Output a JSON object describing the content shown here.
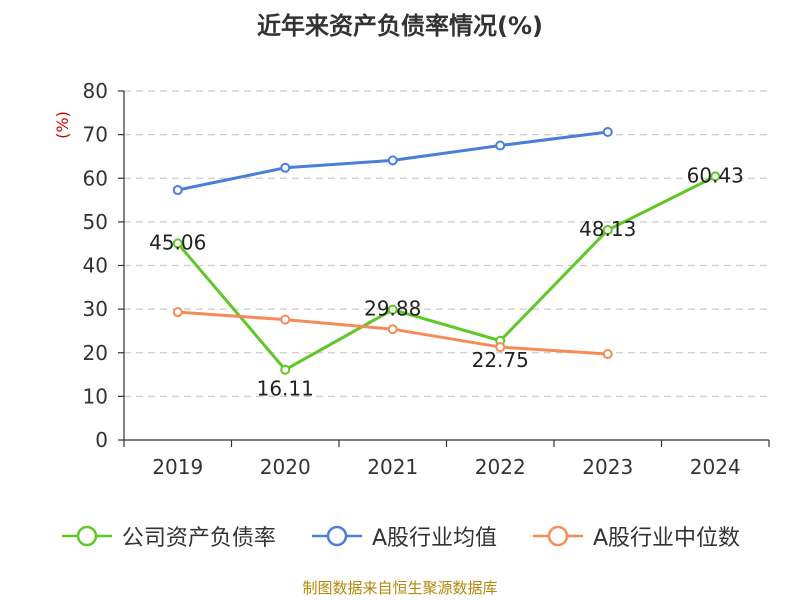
{
  "chart_data": {
    "type": "line",
    "title": "近年来资产负债率情况(%)",
    "ylabel": "(%)",
    "xlabel": "",
    "categories": [
      "2019",
      "2020",
      "2021",
      "2022",
      "2023",
      "2024"
    ],
    "ylim": [
      0,
      80
    ],
    "yticks": [
      0,
      10,
      20,
      30,
      40,
      50,
      60,
      70,
      80
    ],
    "grid": "horizontal-dashed",
    "legend_position": "bottom",
    "series": [
      {
        "name": "公司资产负债率",
        "color": "#5fc726",
        "labels": true,
        "values": [
          45.06,
          16.11,
          29.88,
          22.75,
          48.13,
          60.43
        ]
      },
      {
        "name": "A股行业均值",
        "color": "#4a7fd9",
        "labels": false,
        "values": [
          57.3,
          62.4,
          64.1,
          67.5,
          70.6,
          null
        ]
      },
      {
        "name": "A股行业中位数",
        "color": "#f58b58",
        "labels": false,
        "values": [
          29.3,
          27.6,
          25.4,
          21.3,
          19.7,
          null
        ]
      }
    ]
  },
  "source": "制图数据来自恒生聚源数据库"
}
